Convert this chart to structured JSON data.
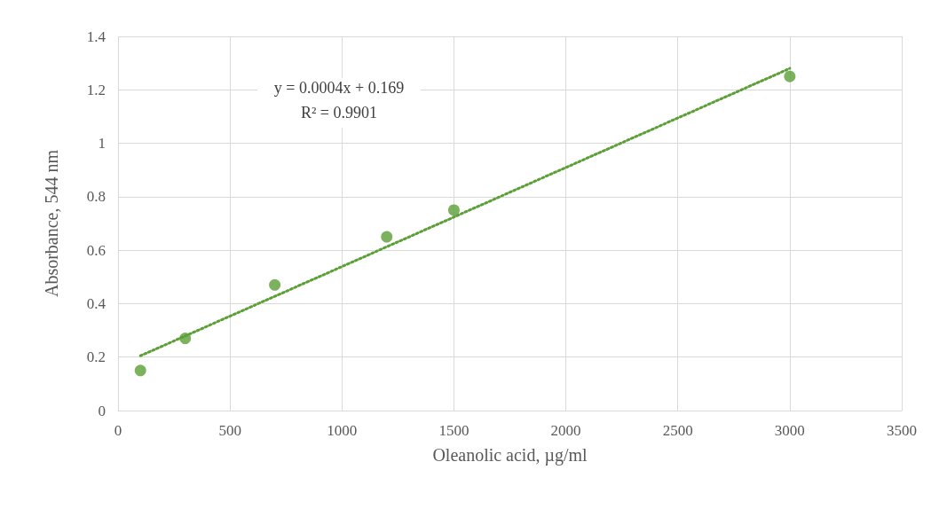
{
  "chart_data": {
    "type": "scatter",
    "xlabel": "Oleanolic acid, µg/ml",
    "ylabel": "Absorbance, 544 nm",
    "annotations": [
      "y = 0.0004x + 0.169",
      "R² = 0.9901"
    ],
    "series": [
      {
        "type": "scatter",
        "color": "#5b9f36",
        "x": [
          100,
          300,
          700,
          1200,
          1500,
          3000
        ],
        "values": [
          0.15,
          0.27,
          0.47,
          0.65,
          0.75,
          1.25
        ],
        "marker": "circle"
      },
      {
        "type": "line",
        "color": "#5b9f36",
        "x": [
          100,
          3000
        ],
        "values": [
          0.205,
          1.28
        ],
        "line_style": "dotted",
        "marker": "none"
      }
    ],
    "xlim": [
      0,
      3500
    ],
    "xticks": [
      0,
      500,
      1000,
      1500,
      2000,
      2500,
      3000,
      3500
    ],
    "ylim": [
      0,
      1.4
    ],
    "yticks": [
      0,
      0.2,
      0.4,
      0.6,
      0.8,
      1,
      1.2,
      1.4
    ],
    "grid": true
  }
}
